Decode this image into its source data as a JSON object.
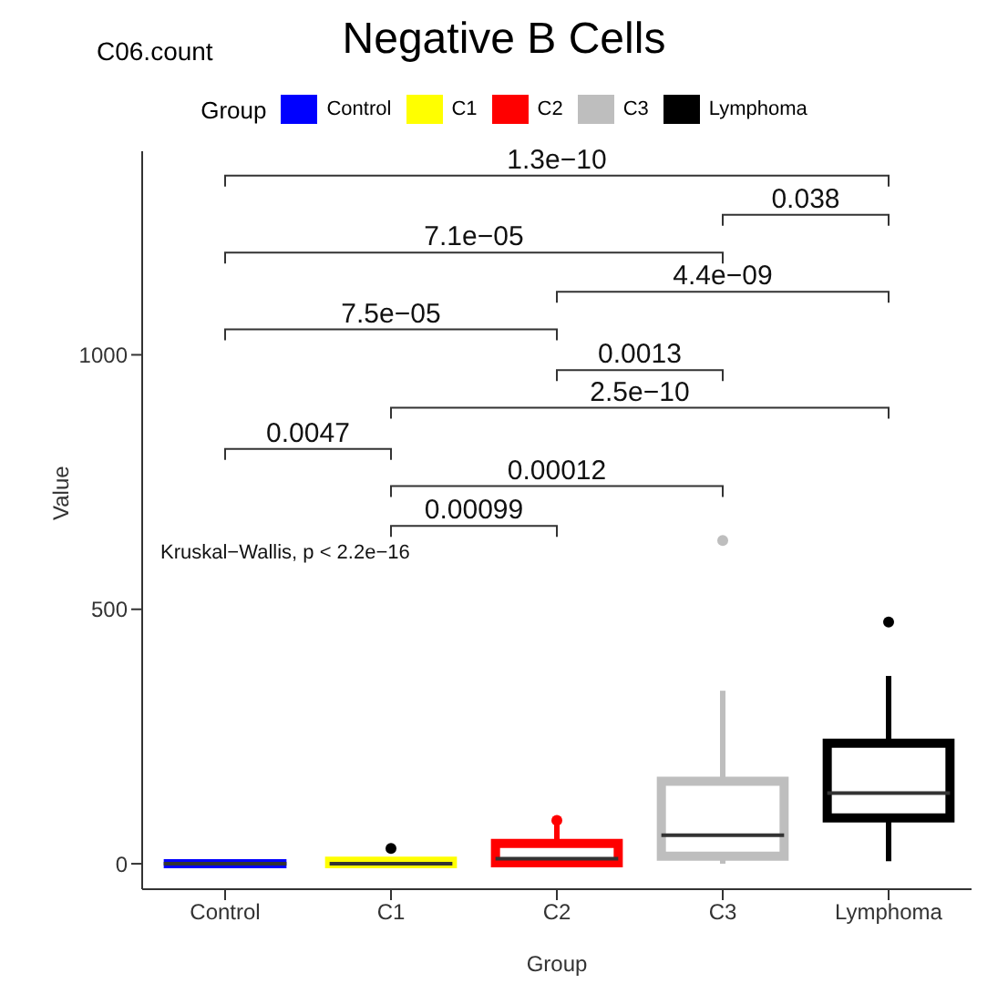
{
  "chart_data": {
    "type": "box",
    "title": "Negative B Cells",
    "subtitle": "C06.count",
    "xlabel": "Group",
    "ylabel": "Value",
    "legend_title": "Group",
    "legend": "top",
    "grid": false,
    "categories": [
      "Control",
      "C1",
      "C2",
      "C3",
      "Lymphoma"
    ],
    "series": [
      {
        "name": "Control",
        "color": "#0000ff",
        "boxes": [
          {
            "low": 0,
            "q1": 0,
            "median": 0,
            "q3": 0,
            "high": 0
          },
          null,
          null,
          null,
          null
        ]
      },
      {
        "name": "C1",
        "color": "#ffff00",
        "boxes": [
          null,
          {
            "low": 0,
            "q1": 0,
            "median": 0,
            "q3": 5,
            "high": 10,
            "outliers": [
              30
            ]
          },
          null,
          null,
          null
        ]
      },
      {
        "name": "C2",
        "color": "#ff0000",
        "boxes": [
          null,
          null,
          {
            "low": 0,
            "q1": 2,
            "median": 10,
            "q3": 40,
            "high": 80,
            "outliers": [
              85
            ]
          },
          null,
          null
        ]
      },
      {
        "name": "C3",
        "color": "#bebebe",
        "boxes": [
          null,
          null,
          null,
          {
            "low": 0,
            "q1": 15,
            "median": 56,
            "q3": 162,
            "high": 340,
            "outliers": [
              635
            ]
          },
          null
        ]
      },
      {
        "name": "Lymphoma",
        "color": "#000000",
        "boxes": [
          null,
          null,
          null,
          null,
          {
            "low": 5,
            "q1": 90,
            "median": 139,
            "q3": 237,
            "high": 369,
            "outliers": [
              475
            ]
          }
        ]
      }
    ],
    "ylim": [
      -50,
      1400
    ],
    "yticks": [
      0,
      500,
      1000
    ],
    "annotations": [
      "1.3e−10",
      "0.038",
      "7.1e−05",
      "4.4e−09",
      "7.5e−05",
      "0.0013",
      "2.5e−10",
      "0.0047",
      "0.00012",
      "0.00099",
      "Kruskal−Wallis, p < 2.2e−16"
    ]
  }
}
